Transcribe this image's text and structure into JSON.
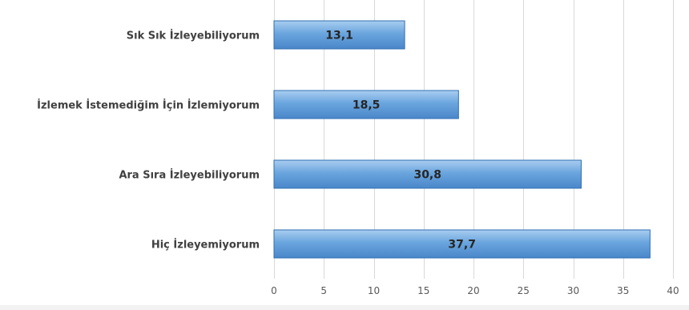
{
  "chart_data": {
    "type": "bar",
    "orientation": "horizontal",
    "categories": [
      "Sık Sık İzleyebiliyorum",
      "İzlemek İstemediğim İçin İzlemiyorum",
      "Ara Sıra İzleyebiliyorum",
      "Hiç İzleyemiyorum"
    ],
    "values": [
      13.1,
      18.5,
      30.8,
      37.7
    ],
    "value_labels": [
      "13,1",
      "18,5",
      "30,8",
      "37,7"
    ],
    "xlim": [
      0,
      40
    ],
    "x_ticks": [
      0,
      5,
      10,
      15,
      20,
      25,
      30,
      35,
      40
    ],
    "grid": true,
    "legend": "none",
    "bar_color": "#5b9bd5",
    "bar_color_light": "#9dc3e6"
  }
}
